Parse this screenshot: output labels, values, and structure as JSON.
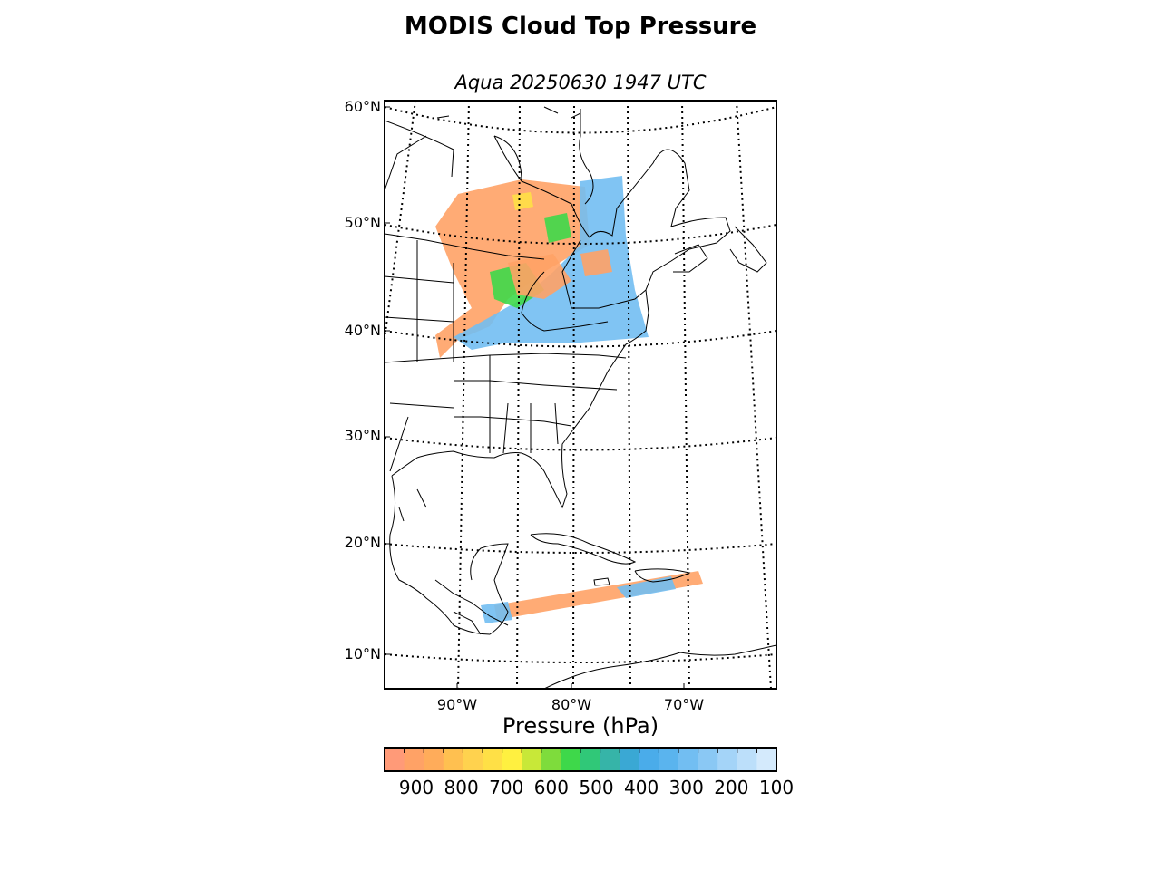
{
  "title": "MODIS Cloud Top Pressure",
  "subtitle": "Aqua 20250630 1947 UTC",
  "map": {
    "latitude_labels": [
      {
        "value": 60,
        "label": "60°N"
      },
      {
        "value": 50,
        "label": "50°N"
      },
      {
        "value": 40,
        "label": "40°N"
      },
      {
        "value": 30,
        "label": "30°N"
      },
      {
        "value": 20,
        "label": "20°N"
      },
      {
        "value": 10,
        "label": "10°N"
      }
    ],
    "longitude_labels": [
      {
        "value": -90,
        "label": "90°W"
      },
      {
        "value": -80,
        "label": "80°W"
      },
      {
        "value": -70,
        "label": "70°W"
      }
    ]
  },
  "colorbar": {
    "title": "Pressure (hPa)",
    "ticks": [
      "900",
      "800",
      "700",
      "600",
      "500",
      "400",
      "300",
      "200",
      "100"
    ],
    "colors": [
      "#ff9a78",
      "#ffa266",
      "#ffac5a",
      "#ffc050",
      "#ffd24e",
      "#ffe046",
      "#fff040",
      "#c8e838",
      "#7edc3c",
      "#3ed84a",
      "#30c878",
      "#36b4a8",
      "#3aa8d4",
      "#4aacea",
      "#5ab4ee",
      "#72bef2",
      "#8ac8f4",
      "#a4d4f8",
      "#bcdffa",
      "#d4eafc"
    ]
  },
  "swath_colors": {
    "low": "#ffa266",
    "high": "#72bef2",
    "mid": "#3ed84a",
    "yellow": "#ffe046"
  }
}
